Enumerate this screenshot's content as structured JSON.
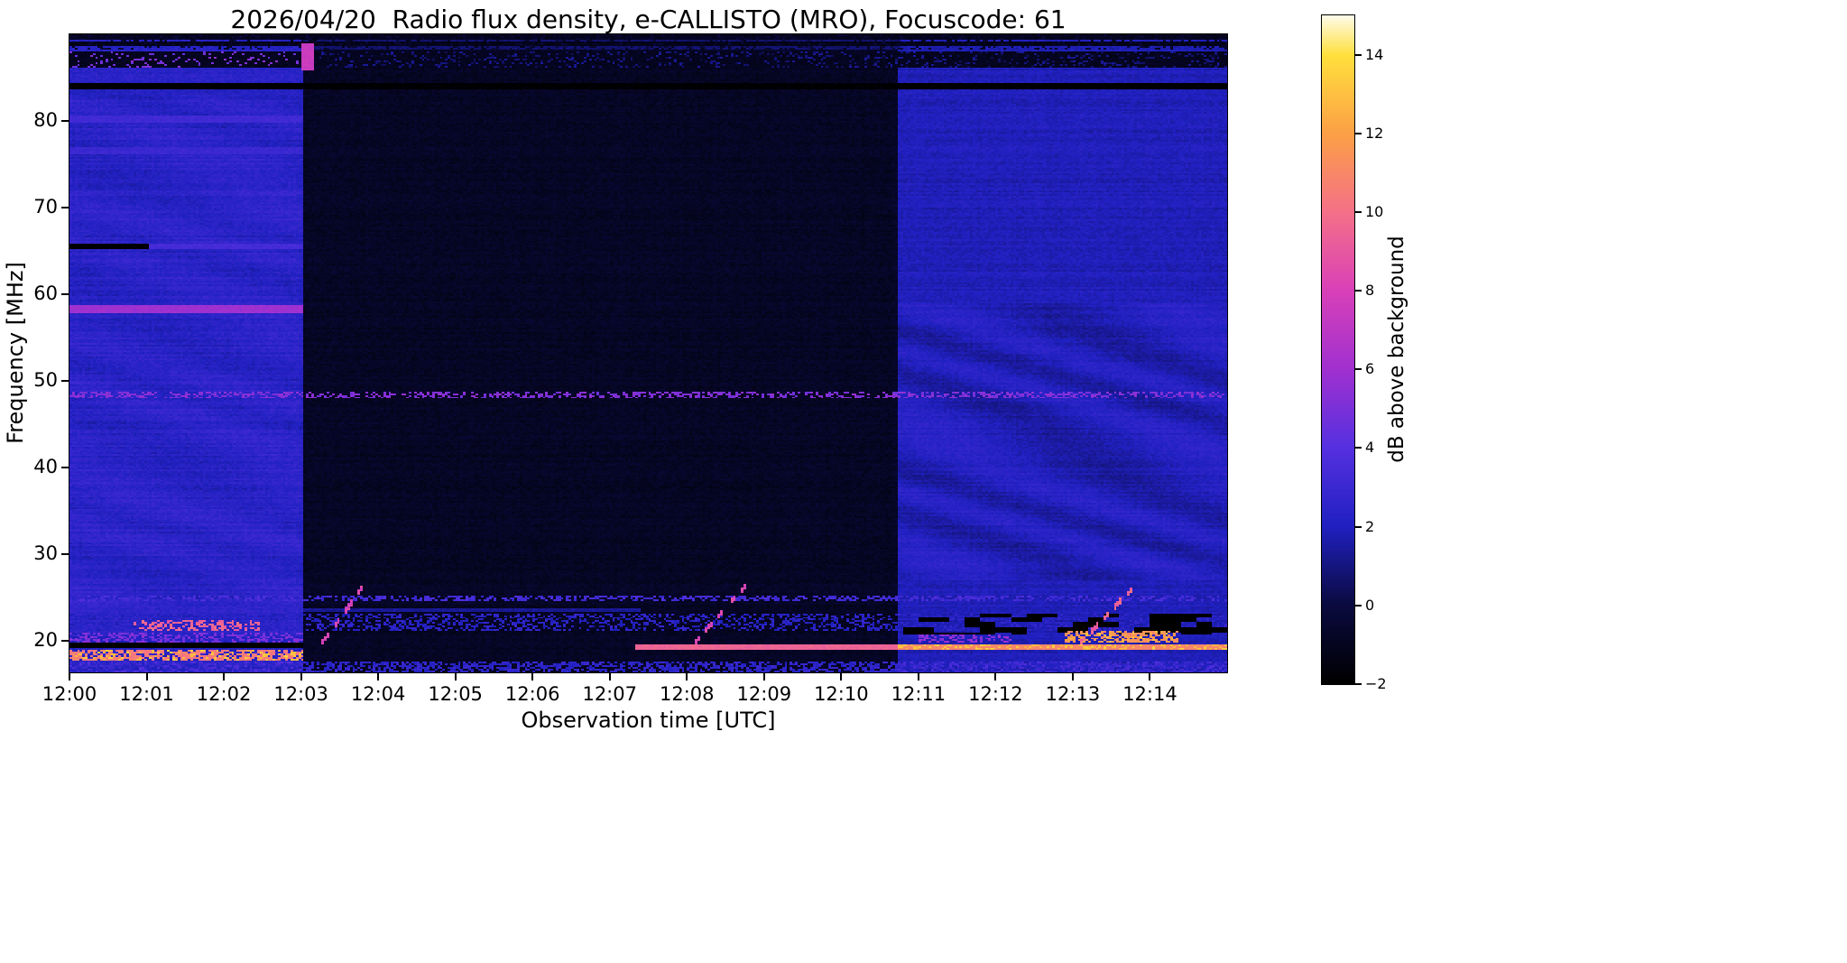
{
  "figure": {
    "title": "2026/04/20  Radio flux density, e-CALLISTO (MRO), Focuscode: 61",
    "xlabel": "Observation time [UTC]",
    "ylabel": "Frequency [MHz]",
    "colorbar_label": "dB above background",
    "background": "#ffffff"
  },
  "chart_data": {
    "type": "heatmap",
    "title": "2026/04/20  Radio flux density, e-CALLISTO (MRO), Focuscode: 61",
    "xlabel": "Observation time [UTC]",
    "ylabel": "Frequency [MHz]",
    "colorbar_label": "dB above background",
    "grid": false,
    "legend": false,
    "x_ticks": [
      "12:00",
      "12:01",
      "12:02",
      "12:03",
      "12:04",
      "12:05",
      "12:06",
      "12:07",
      "12:08",
      "12:09",
      "12:10",
      "12:11",
      "12:12",
      "12:13",
      "12:14"
    ],
    "x_tick_minutes": [
      0,
      1,
      2,
      3,
      4,
      5,
      6,
      7,
      8,
      9,
      10,
      11,
      12,
      13,
      14
    ],
    "x_range_minutes": [
      0,
      15
    ],
    "y_ticks": [
      20,
      30,
      40,
      50,
      60,
      70,
      80
    ],
    "y_range_mhz": [
      16.4,
      90
    ],
    "colorbar_ticks": [
      -2,
      0,
      2,
      4,
      6,
      8,
      10,
      12,
      14
    ],
    "colorbar_range": [
      -2,
      15
    ],
    "colormap_stops": [
      {
        "v": 0.0,
        "color": "#000000"
      },
      {
        "v": 0.118,
        "color": "#0a0a40"
      },
      {
        "v": 0.235,
        "color": "#2020c0"
      },
      {
        "v": 0.353,
        "color": "#5530e0"
      },
      {
        "v": 0.47,
        "color": "#a030d0"
      },
      {
        "v": 0.588,
        "color": "#d840b8"
      },
      {
        "v": 0.706,
        "color": "#f47088"
      },
      {
        "v": 0.824,
        "color": "#fca046"
      },
      {
        "v": 0.941,
        "color": "#ffe03c"
      },
      {
        "v": 1.0,
        "color": "#fdfbe8"
      }
    ],
    "segments": [
      {
        "t0": 0.0,
        "t1": 3.05,
        "base": 2.35,
        "noise": 0.35,
        "row_amp": 0.3,
        "ripple_amp": 0.22,
        "ripple_f0": 24,
        "ripple_f1": 83
      },
      {
        "t0": 3.05,
        "t1": 10.75,
        "base": -0.85,
        "noise": 0.32,
        "row_amp": 0.15,
        "ripple_amp": 0.0,
        "ripple_f0": 0,
        "ripple_f1": 0
      },
      {
        "t0": 10.75,
        "t1": 15.0,
        "base": 1.9,
        "noise": 0.3,
        "row_amp": 0.22,
        "ripple_amp": 0.45,
        "ripple_f0": 27,
        "ripple_f1": 59
      }
    ],
    "features": [
      {
        "kind": "band",
        "t0": 3.05,
        "t1": 10.75,
        "f0": 88.3,
        "f1": 90.0,
        "value": 0.7
      },
      {
        "kind": "band",
        "t0": 0,
        "t1": 15,
        "f0": 89.5,
        "f1": 90.0,
        "value": -1.0
      },
      {
        "kind": "band",
        "t0": 0,
        "t1": 15,
        "f0": 88.6,
        "f1": 89.1,
        "value": -1.2
      },
      {
        "kind": "speckle",
        "t0": 0,
        "t1": 15,
        "f0": 88.3,
        "f1": 90.0,
        "value": -0.6,
        "density": 0.22
      },
      {
        "kind": "band",
        "t0": 0,
        "t1": 15,
        "f0": 86.2,
        "f1": 88.0,
        "value": -1.0
      },
      {
        "kind": "speckle",
        "t0": 0,
        "t1": 3.05,
        "f0": 86.2,
        "f1": 88.0,
        "value": 5.0,
        "density": 0.12
      },
      {
        "kind": "speckle",
        "t0": 3.05,
        "t1": 15,
        "f0": 86.2,
        "f1": 88.0,
        "value": 0.9,
        "density": 0.18
      },
      {
        "kind": "band",
        "t0": 0,
        "t1": 15,
        "f0": 83.7,
        "f1": 84.4,
        "value": -2
      },
      {
        "kind": "band",
        "t0": 3.0,
        "t1": 3.17,
        "f0": 85.8,
        "f1": 89.0,
        "value": 7.5
      },
      {
        "kind": "band",
        "t0": 0,
        "t1": 3.05,
        "f0": 79.9,
        "f1": 80.5,
        "value": 3.2
      },
      {
        "kind": "band",
        "t0": 0,
        "t1": 3.05,
        "f0": 76.3,
        "f1": 76.9,
        "value": 3.0
      },
      {
        "kind": "band",
        "t0": 0,
        "t1": 1.05,
        "f0": 65.2,
        "f1": 65.8,
        "value": -2
      },
      {
        "kind": "band",
        "t0": 1.05,
        "t1": 3.05,
        "f0": 65.2,
        "f1": 65.8,
        "value": 3.4
      },
      {
        "kind": "band",
        "t0": 0,
        "t1": 3.05,
        "f0": 57.9,
        "f1": 58.9,
        "value": 6.0
      },
      {
        "kind": "speckle",
        "t0": 0,
        "t1": 15,
        "f0": 48.1,
        "f1": 48.7,
        "value": 5.2,
        "density": 0.45
      },
      {
        "kind": "speckle",
        "t0": 0,
        "t1": 15,
        "f0": 24.7,
        "f1": 25.2,
        "value": 3.3,
        "density": 0.5
      },
      {
        "kind": "band",
        "t0": 3.05,
        "t1": 7.4,
        "f0": 23.5,
        "f1": 23.9,
        "value": 1.3
      },
      {
        "kind": "speckle",
        "t0": 0,
        "t1": 15,
        "f0": 21.2,
        "f1": 23.3,
        "value": 2.3,
        "density": 0.4
      },
      {
        "kind": "speckle",
        "t0": 0.85,
        "t1": 2.45,
        "f0": 21.2,
        "f1": 22.4,
        "value": 9.5,
        "density": 0.45
      },
      {
        "kind": "blocks",
        "t0": 10.8,
        "t1": 15,
        "f0": 20.9,
        "f1": 23.3,
        "value": -2,
        "density": 0.5
      },
      {
        "kind": "speckle",
        "t0": 0,
        "t1": 3.05,
        "f0": 19.9,
        "f1": 21.1,
        "value": 5.0,
        "density": 0.4
      },
      {
        "kind": "band",
        "t0": 0,
        "t1": 3.05,
        "f0": 19.2,
        "f1": 19.9,
        "value": -2
      },
      {
        "kind": "speckle",
        "t0": 0,
        "t1": 3.05,
        "f0": 17.8,
        "f1": 19.1,
        "value": 10.5,
        "density": 0.7
      },
      {
        "kind": "speckle",
        "t0": 0,
        "t1": 3.05,
        "f0": 17.8,
        "f1": 19.1,
        "value": 13.0,
        "density": 0.18
      },
      {
        "kind": "band",
        "t0": 7.35,
        "t1": 10.75,
        "f0": 19.0,
        "f1": 19.6,
        "value": 9.5
      },
      {
        "kind": "band",
        "t0": 10.75,
        "t1": 15,
        "f0": 19.0,
        "f1": 19.7,
        "value": 11.0
      },
      {
        "kind": "speckle",
        "t0": 10.75,
        "t1": 15,
        "f0": 19.0,
        "f1": 19.7,
        "value": 13.0,
        "density": 0.3
      },
      {
        "kind": "speckle",
        "t0": 11.0,
        "t1": 12.2,
        "f0": 19.8,
        "f1": 20.8,
        "value": 5.5,
        "density": 0.4
      },
      {
        "kind": "speckle",
        "t0": 12.9,
        "t1": 14.35,
        "f0": 19.9,
        "f1": 21.2,
        "value": 11.5,
        "density": 0.6
      },
      {
        "kind": "speckle",
        "t0": 12.9,
        "t1": 14.35,
        "f0": 19.9,
        "f1": 21.2,
        "value": 13.0,
        "density": 0.15
      },
      {
        "kind": "speckle",
        "t0": 0,
        "t1": 15,
        "f0": 16.4,
        "f1": 17.7,
        "value": 2.5,
        "density": 0.55
      },
      {
        "kind": "speckle",
        "t0": 0,
        "t1": 3.05,
        "f0": 16.4,
        "f1": 17.7,
        "value": 3.4,
        "density": 0.3
      },
      {
        "kind": "speckle",
        "t0": 10.75,
        "t1": 15,
        "f0": 16.4,
        "f1": 17.7,
        "value": 3.2,
        "density": 0.3
      },
      {
        "kind": "diag",
        "t0": 3.28,
        "t1": 3.8,
        "f0": 19.8,
        "f1": 26.3,
        "value": 8.0
      },
      {
        "kind": "diag",
        "t0": 8.1,
        "t1": 8.75,
        "f0": 19.8,
        "f1": 26.3,
        "value": 8.0
      },
      {
        "kind": "diag",
        "t0": 13.1,
        "t1": 13.8,
        "f0": 19.8,
        "f1": 26.3,
        "value": 9.5
      }
    ]
  }
}
